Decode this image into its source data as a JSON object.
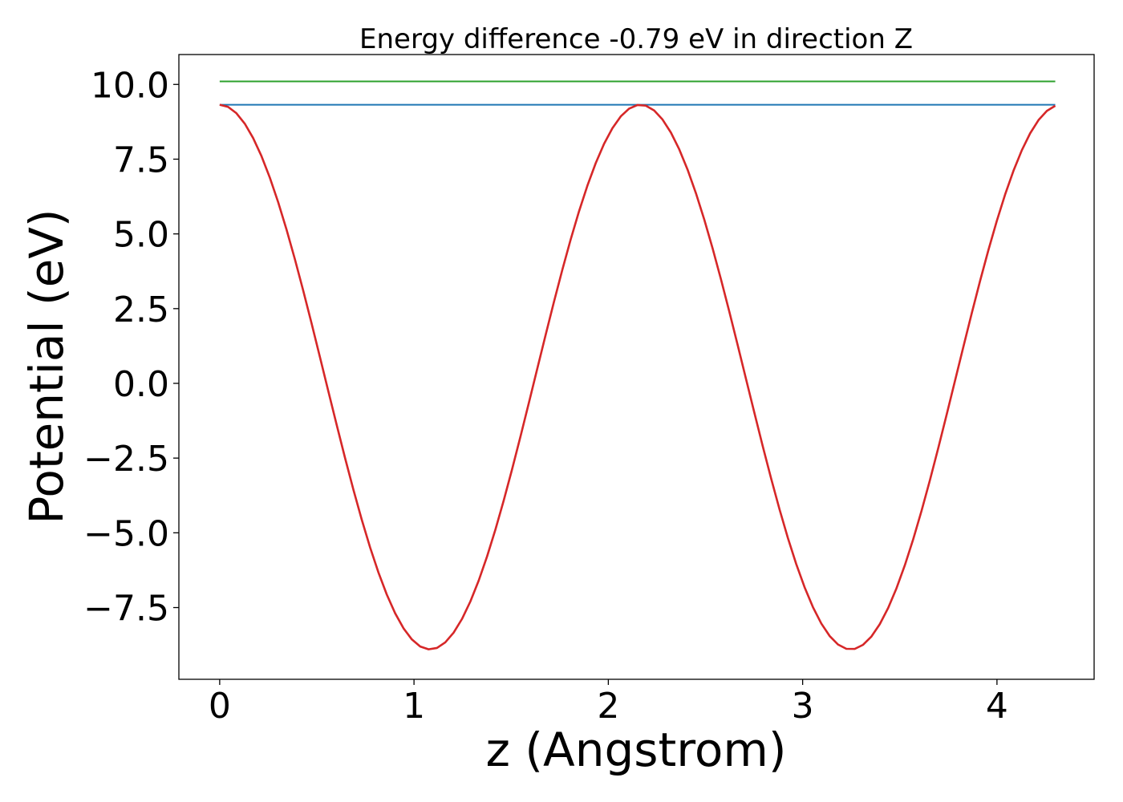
{
  "chart_data": {
    "type": "line",
    "title": "Energy difference -0.79 eV in direction Z",
    "xlabel": "z (Angstrom)",
    "ylabel": "Potential (eV)",
    "xlim": [
      -0.21,
      4.5
    ],
    "ylim": [
      -9.9,
      11.0
    ],
    "xticks": [
      0,
      1,
      2,
      3,
      4
    ],
    "xtick_labels": [
      "0",
      "1",
      "2",
      "3",
      "4"
    ],
    "yticks": [
      10.0,
      7.5,
      5.0,
      2.5,
      0.0,
      -2.5,
      -5.0,
      -7.5
    ],
    "ytick_labels": [
      "10.0",
      "7.5",
      "5.0",
      "2.5",
      "0.0",
      "−2.5",
      "−5.0",
      "−7.5"
    ],
    "grid": false,
    "legend": "none",
    "series": [
      {
        "color": "#2ca02c",
        "x": [
          0,
          4.3
        ],
        "y": [
          10.1,
          10.1
        ]
      },
      {
        "color": "#1f77b4",
        "x": [
          0,
          4.3
        ],
        "y": [
          9.32,
          9.32
        ]
      },
      {
        "color": "#d62728",
        "function": "cosine",
        "x_start": 0,
        "x_end": 4.3,
        "points": 101,
        "period": 2.165,
        "max": 9.32,
        "min": -8.9
      }
    ]
  }
}
